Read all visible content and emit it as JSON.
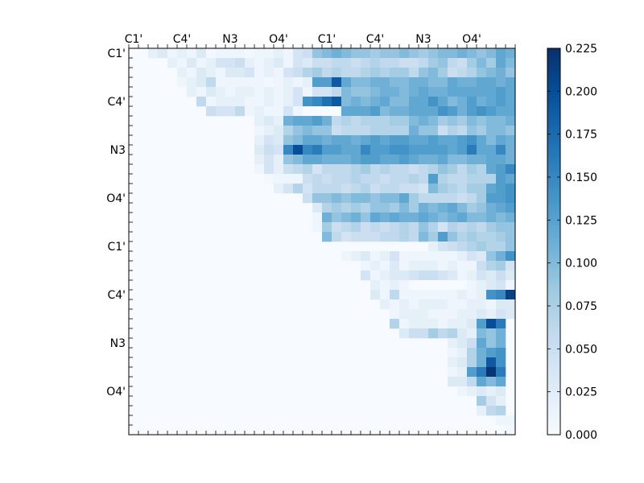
{
  "chart_data": {
    "type": "heatmap",
    "title": "",
    "xlabel": "",
    "ylabel": "",
    "colormap": "Blues",
    "grid_size": 40,
    "x_tick_labels": [
      "C1'",
      "C4'",
      "N3",
      "O4'",
      "C1'",
      "C4'",
      "N3",
      "O4'"
    ],
    "x_tick_positions": [
      0,
      5,
      10,
      15,
      20,
      25,
      30,
      35
    ],
    "y_tick_labels": [
      "C1'",
      "C4'",
      "N3",
      "O4'",
      "C1'",
      "C4'",
      "N3",
      "O4'"
    ],
    "y_tick_positions": [
      0,
      5,
      10,
      15,
      20,
      25,
      30,
      35
    ],
    "colorbar": {
      "range": [
        0.0,
        0.225
      ],
      "tick_labels": [
        "0.000",
        "0.025",
        "0.050",
        "0.075",
        "0.100",
        "0.125",
        "0.150",
        "0.175",
        "0.200",
        "0.225"
      ],
      "tick_values": [
        0.0,
        0.025,
        0.05,
        0.075,
        0.1,
        0.125,
        0.15,
        0.175,
        0.2,
        0.225
      ]
    },
    "rows": [
      {
        "row": 0,
        "cols_from": 2,
        "values": [
          0.02,
          0.03,
          0.01,
          0.02,
          0.01,
          0.03,
          0.005,
          0.01,
          0.01,
          0.01,
          0.005,
          0.01,
          0.01,
          0.02,
          0.01,
          0.04,
          0.05,
          0.09,
          0.1,
          0.11,
          0.1,
          0.09,
          0.09,
          0.08,
          0.09,
          0.09,
          0.1,
          0.09,
          0.08,
          0.09,
          0.1,
          0.1,
          0.11,
          0.1,
          0.09,
          0.1,
          0.12,
          0.11
        ]
      },
      {
        "row": 1,
        "cols_from": 4,
        "values": [
          0.02,
          0.01,
          0.03,
          0.01,
          0.02,
          0.04,
          0.04,
          0.05,
          0.02,
          0.01,
          0.02,
          0.03,
          0.01,
          0.04,
          0.03,
          0.05,
          0.05,
          0.06,
          0.06,
          0.05,
          0.06,
          0.07,
          0.06,
          0.06,
          0.05,
          0.05,
          0.06,
          0.08,
          0.09,
          0.06,
          0.05,
          0.08,
          0.1,
          0.08,
          0.12,
          0.1
        ]
      },
      {
        "row": 2,
        "cols_from": 5,
        "values": [
          0.02,
          0.01,
          0.03,
          0.02,
          0.01,
          0.03,
          0.03,
          0.04,
          0.01,
          0.02,
          0.01,
          0.04,
          0.05,
          0.07,
          0.08,
          0.06,
          0.07,
          0.06,
          0.06,
          0.07,
          0.08,
          0.07,
          0.08,
          0.08,
          0.06,
          0.09,
          0.1,
          0.08,
          0.05,
          0.06,
          0.07,
          0.09,
          0.1,
          0.11,
          0.09
        ]
      },
      {
        "row": 3,
        "cols_from": 5,
        "values": [
          0.01,
          0.02,
          0.03,
          0.06,
          0.01,
          0.01,
          0.01,
          0.01,
          0.01,
          0.005,
          0.01,
          0.02,
          0.01,
          0.02,
          0.13,
          0.13,
          0.19,
          0.12,
          0.1,
          0.1,
          0.11,
          0.11,
          0.1,
          0.1,
          0.11,
          0.11,
          0.1,
          0.1,
          0.12,
          0.11,
          0.11,
          0.12,
          0.12,
          0.11,
          0.12
        ]
      },
      {
        "row": 4,
        "cols_from": 6,
        "values": [
          0.02,
          0.01,
          0.03,
          0.02,
          0.01,
          0.02,
          0.02,
          0.01,
          0.02,
          0.01,
          0.02,
          0.04,
          0.01,
          0.04,
          0.04,
          0.06,
          0.1,
          0.09,
          0.09,
          0.1,
          0.11,
          0.11,
          0.1,
          0.11,
          0.12,
          0.11,
          0.11,
          0.12,
          0.12,
          0.12,
          0.12,
          0.12,
          0.13,
          0.12
        ]
      },
      {
        "row": 5,
        "cols_from": 7,
        "values": [
          0.06,
          0.01,
          0.02,
          0.02,
          0.02,
          0.01,
          0.01,
          0.02,
          0.01,
          0.02,
          0.04,
          0.14,
          0.15,
          0.17,
          0.19,
          0.1,
          0.11,
          0.1,
          0.11,
          0.12,
          0.1,
          0.1,
          0.12,
          0.12,
          0.14,
          0.12,
          0.1,
          0.11,
          0.13,
          0.11,
          0.12,
          0.13,
          0.12
        ]
      },
      {
        "row": 6,
        "cols_from": 8,
        "values": [
          0.05,
          0.04,
          0.04,
          0.06,
          0.01,
          0.02,
          0.01,
          0.01,
          0.04,
          0.01,
          0.0,
          0.0,
          0.0,
          0.0,
          0.12,
          0.12,
          0.12,
          0.13,
          0.1,
          0.11,
          0.11,
          0.12,
          0.12,
          0.12,
          0.14,
          0.13,
          0.11,
          0.13,
          0.14,
          0.13,
          0.12,
          0.12
        ]
      },
      {
        "row": 7,
        "cols_from": 13,
        "values": [
          0.02,
          0.03,
          0.02,
          0.11,
          0.12,
          0.12,
          0.13,
          0.11,
          0.06,
          0.07,
          0.06,
          0.07,
          0.07,
          0.07,
          0.08,
          0.08,
          0.1,
          0.11,
          0.1,
          0.08,
          0.09,
          0.08,
          0.1,
          0.09,
          0.1,
          0.1,
          0.11
        ]
      },
      {
        "row": 8,
        "cols_from": 13,
        "values": [
          0.01,
          0.02,
          0.03,
          0.07,
          0.09,
          0.1,
          0.09,
          0.09,
          0.05,
          0.06,
          0.06,
          0.06,
          0.07,
          0.07,
          0.07,
          0.07,
          0.11,
          0.09,
          0.09,
          0.05,
          0.07,
          0.06,
          0.09,
          0.08,
          0.1,
          0.1,
          0.09
        ]
      },
      {
        "row": 9,
        "cols_from": 13,
        "values": [
          0.02,
          0.04,
          0.03,
          0.09,
          0.1,
          0.12,
          0.12,
          0.11,
          0.12,
          0.12,
          0.11,
          0.12,
          0.13,
          0.12,
          0.13,
          0.13,
          0.12,
          0.12,
          0.13,
          0.12,
          0.12,
          0.13,
          0.14,
          0.12,
          0.1,
          0.12,
          0.11
        ]
      },
      {
        "row": 10,
        "cols_from": 13,
        "values": [
          0.03,
          0.05,
          0.04,
          0.15,
          0.2,
          0.15,
          0.16,
          0.13,
          0.13,
          0.12,
          0.12,
          0.15,
          0.13,
          0.13,
          0.14,
          0.14,
          0.13,
          0.13,
          0.13,
          0.13,
          0.12,
          0.13,
          0.16,
          0.12,
          0.12,
          0.15,
          0.11
        ]
      },
      {
        "row": 11,
        "cols_from": 13,
        "values": [
          0.02,
          0.04,
          0.02,
          0.09,
          0.1,
          0.12,
          0.12,
          0.11,
          0.11,
          0.11,
          0.12,
          0.13,
          0.13,
          0.12,
          0.12,
          0.13,
          0.12,
          0.11,
          0.11,
          0.12,
          0.1,
          0.1,
          0.11,
          0.11,
          0.12,
          0.12,
          0.11
        ]
      },
      {
        "row": 12,
        "cols_from": 13,
        "values": [
          0.01,
          0.04,
          0.02,
          0.05,
          0.06,
          0.07,
          0.04,
          0.06,
          0.06,
          0.06,
          0.07,
          0.08,
          0.06,
          0.07,
          0.06,
          0.06,
          0.05,
          0.06,
          0.07,
          0.09,
          0.08,
          0.06,
          0.08,
          0.07,
          0.12,
          0.13,
          0.15
        ]
      },
      {
        "row": 13,
        "cols_from": 14,
        "values": [
          0.005,
          0.01,
          0.01,
          0.01,
          0.05,
          0.06,
          0.05,
          0.06,
          0.06,
          0.07,
          0.06,
          0.06,
          0.05,
          0.06,
          0.06,
          0.07,
          0.06,
          0.13,
          0.07,
          0.06,
          0.06,
          0.07,
          0.07,
          0.07,
          0.13,
          0.12
        ]
      },
      {
        "row": 14,
        "cols_from": 15,
        "values": [
          0.02,
          0.04,
          0.07,
          0.04,
          0.06,
          0.06,
          0.06,
          0.05,
          0.06,
          0.07,
          0.05,
          0.06,
          0.06,
          0.05,
          0.05,
          0.04,
          0.1,
          0.08,
          0.07,
          0.06,
          0.08,
          0.08,
          0.12,
          0.13,
          0.14
        ]
      },
      {
        "row": 15,
        "cols_from": 18,
        "values": [
          0.05,
          0.09,
          0.09,
          0.1,
          0.09,
          0.1,
          0.1,
          0.09,
          0.1,
          0.1,
          0.12,
          0.08,
          0.06,
          0.06,
          0.06,
          0.06,
          0.05,
          0.06,
          0.08,
          0.13,
          0.13,
          0.14
        ]
      },
      {
        "row": 16,
        "cols_from": 19,
        "values": [
          0.03,
          0.07,
          0.08,
          0.07,
          0.08,
          0.07,
          0.09,
          0.09,
          0.08,
          0.1,
          0.08,
          0.11,
          0.1,
          0.11,
          0.12,
          0.1,
          0.08,
          0.09,
          0.11,
          0.12,
          0.13
        ]
      },
      {
        "row": 17,
        "cols_from": 19,
        "values": [
          0.01,
          0.11,
          0.09,
          0.1,
          0.11,
          0.09,
          0.12,
          0.11,
          0.12,
          0.11,
          0.11,
          0.12,
          0.11,
          0.1,
          0.11,
          0.12,
          0.1,
          0.1,
          0.11,
          0.1,
          0.11
        ]
      },
      {
        "row": 18,
        "cols_from": 19,
        "values": [
          0.01,
          0.08,
          0.05,
          0.06,
          0.07,
          0.05,
          0.06,
          0.05,
          0.06,
          0.07,
          0.06,
          0.09,
          0.07,
          0.04,
          0.07,
          0.06,
          0.07,
          0.06,
          0.08,
          0.09,
          0.09
        ]
      },
      {
        "row": 19,
        "cols_from": 20,
        "values": [
          0.1,
          0.06,
          0.04,
          0.05,
          0.05,
          0.05,
          0.06,
          0.06,
          0.07,
          0.06,
          0.1,
          0.08,
          0.13,
          0.09,
          0.07,
          0.08,
          0.07,
          0.07,
          0.08,
          0.09
        ]
      },
      {
        "row": 20,
        "cols_from": 31,
        "values": [
          0.02,
          0.04,
          0.05,
          0.06,
          0.07,
          0.08,
          0.07,
          0.07,
          0.09
        ]
      },
      {
        "row": 21,
        "cols_from": 22,
        "values": [
          0.01,
          0.02,
          0.03,
          0.01,
          0.02,
          0.04,
          0.01,
          0.01,
          0.01,
          0.01,
          0.01,
          0.01,
          0.02,
          0.04,
          0.03,
          0.09,
          0.11,
          0.14
        ]
      },
      {
        "row": 22,
        "cols_from": 24,
        "values": [
          0.01,
          0.02,
          0.01,
          0.03,
          0.01,
          0.02,
          0.02,
          0.02,
          0.01,
          0.02,
          0.01,
          0.01,
          0.05,
          0.07,
          0.08,
          0.04
        ]
      },
      {
        "row": 23,
        "cols_from": 24,
        "values": [
          0.04,
          0.01,
          0.02,
          0.03,
          0.03,
          0.04,
          0.05,
          0.05,
          0.04,
          0.03,
          0.01,
          0.02,
          0.04,
          0.03,
          0.05,
          0.03
        ]
      },
      {
        "row": 24,
        "cols_from": 25,
        "values": [
          0.02,
          0.01,
          0.02,
          0.01,
          0.0,
          0.0,
          0.0,
          0.0,
          0.0,
          0.0,
          0.01,
          0.02,
          0.03,
          0.04,
          0.01
        ]
      },
      {
        "row": 25,
        "cols_from": 25,
        "values": [
          0.03,
          0.01,
          0.06,
          0.01,
          0.01,
          0.01,
          0.01,
          0.01,
          0.01,
          0.02,
          0.01,
          0.02,
          0.14,
          0.15,
          0.21,
          0.17
        ]
      },
      {
        "row": 26,
        "cols_from": 26,
        "values": [
          0.02,
          0.01,
          0.02,
          0.01,
          0.02,
          0.02,
          0.02,
          0.01,
          0.01,
          0.02,
          0.02,
          0.01,
          0.03,
          0.03
        ]
      },
      {
        "row": 27,
        "cols_from": 27,
        "values": [
          0.01,
          0.02,
          0.02,
          0.02,
          0.01,
          0.01,
          0.01,
          0.02,
          0.02,
          0.03,
          0.02,
          0.04,
          0.03
        ]
      },
      {
        "row": 28,
        "cols_from": 27,
        "values": [
          0.07,
          0.01,
          0.02,
          0.02,
          0.02,
          0.01,
          0.02,
          0.02,
          0.03,
          0.13,
          0.2,
          0.16
        ]
      },
      {
        "row": 29,
        "cols_from": 28,
        "values": [
          0.03,
          0.05,
          0.05,
          0.08,
          0.06,
          0.07,
          0.03,
          0.02,
          0.1,
          0.09,
          0.11
        ]
      },
      {
        "row": 30,
        "cols_from": 33,
        "values": [
          0.02,
          0.03,
          0.05,
          0.12,
          0.09,
          0.11
        ]
      },
      {
        "row": 31,
        "cols_from": 33,
        "values": [
          0.01,
          0.02,
          0.07,
          0.11,
          0.13,
          0.14
        ]
      },
      {
        "row": 32,
        "cols_from": 33,
        "values": [
          0.02,
          0.03,
          0.07,
          0.11,
          0.19,
          0.14
        ]
      },
      {
        "row": 33,
        "cols_from": 33,
        "values": [
          0.01,
          0.02,
          0.13,
          0.16,
          0.22,
          0.16
        ]
      },
      {
        "row": 34,
        "cols_from": 33,
        "values": [
          0.03,
          0.03,
          0.06,
          0.12,
          0.1,
          0.12
        ]
      },
      {
        "row": 35,
        "cols_from": 34,
        "values": [
          0.01,
          0.02,
          0.03,
          0.02,
          0.03
        ]
      },
      {
        "row": 36,
        "cols_from": 36,
        "values": [
          0.08,
          0.04,
          0.02
        ]
      },
      {
        "row": 37,
        "cols_from": 36,
        "values": [
          0.02,
          0.06,
          0.07
        ]
      },
      {
        "row": 38,
        "cols_from": 38,
        "values": [
          0.01,
          0.01
        ]
      },
      {
        "row": 39,
        "cols_from": 39,
        "values": [
          0.005
        ]
      }
    ]
  }
}
